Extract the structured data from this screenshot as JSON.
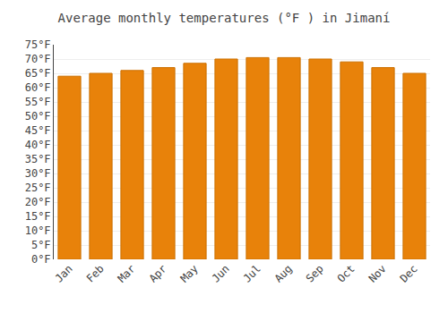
{
  "chart_data": {
    "type": "bar",
    "title": "Average monthly temperatures (°F ) in Jimaní",
    "categories": [
      "Jan",
      "Feb",
      "Mar",
      "Apr",
      "May",
      "Jun",
      "Jul",
      "Aug",
      "Sep",
      "Oct",
      "Nov",
      "Dec"
    ],
    "values": [
      64,
      65,
      66,
      67,
      68.5,
      70,
      70.5,
      70.5,
      70,
      69,
      67,
      65
    ],
    "color": "#E8820A",
    "ylim": [
      0,
      75
    ],
    "yticks": [
      {
        "value": 0,
        "label": "0°F"
      },
      {
        "value": 5,
        "label": "5°F"
      },
      {
        "value": 10,
        "label": "10°F"
      },
      {
        "value": 15,
        "label": "15°F"
      },
      {
        "value": 20,
        "label": "20°F"
      },
      {
        "value": 25,
        "label": "25°F"
      },
      {
        "value": 30,
        "label": "30°F"
      },
      {
        "value": 35,
        "label": "35°F"
      },
      {
        "value": 40,
        "label": "40°F"
      },
      {
        "value": 45,
        "label": "45°F"
      },
      {
        "value": 50,
        "label": "50°F"
      },
      {
        "value": 55,
        "label": "55°F"
      },
      {
        "value": 60,
        "label": "60°F"
      },
      {
        "value": 65,
        "label": "65°F"
      },
      {
        "value": 70,
        "label": "70°F"
      },
      {
        "value": 75,
        "label": "75°F"
      }
    ],
    "grid": true
  }
}
